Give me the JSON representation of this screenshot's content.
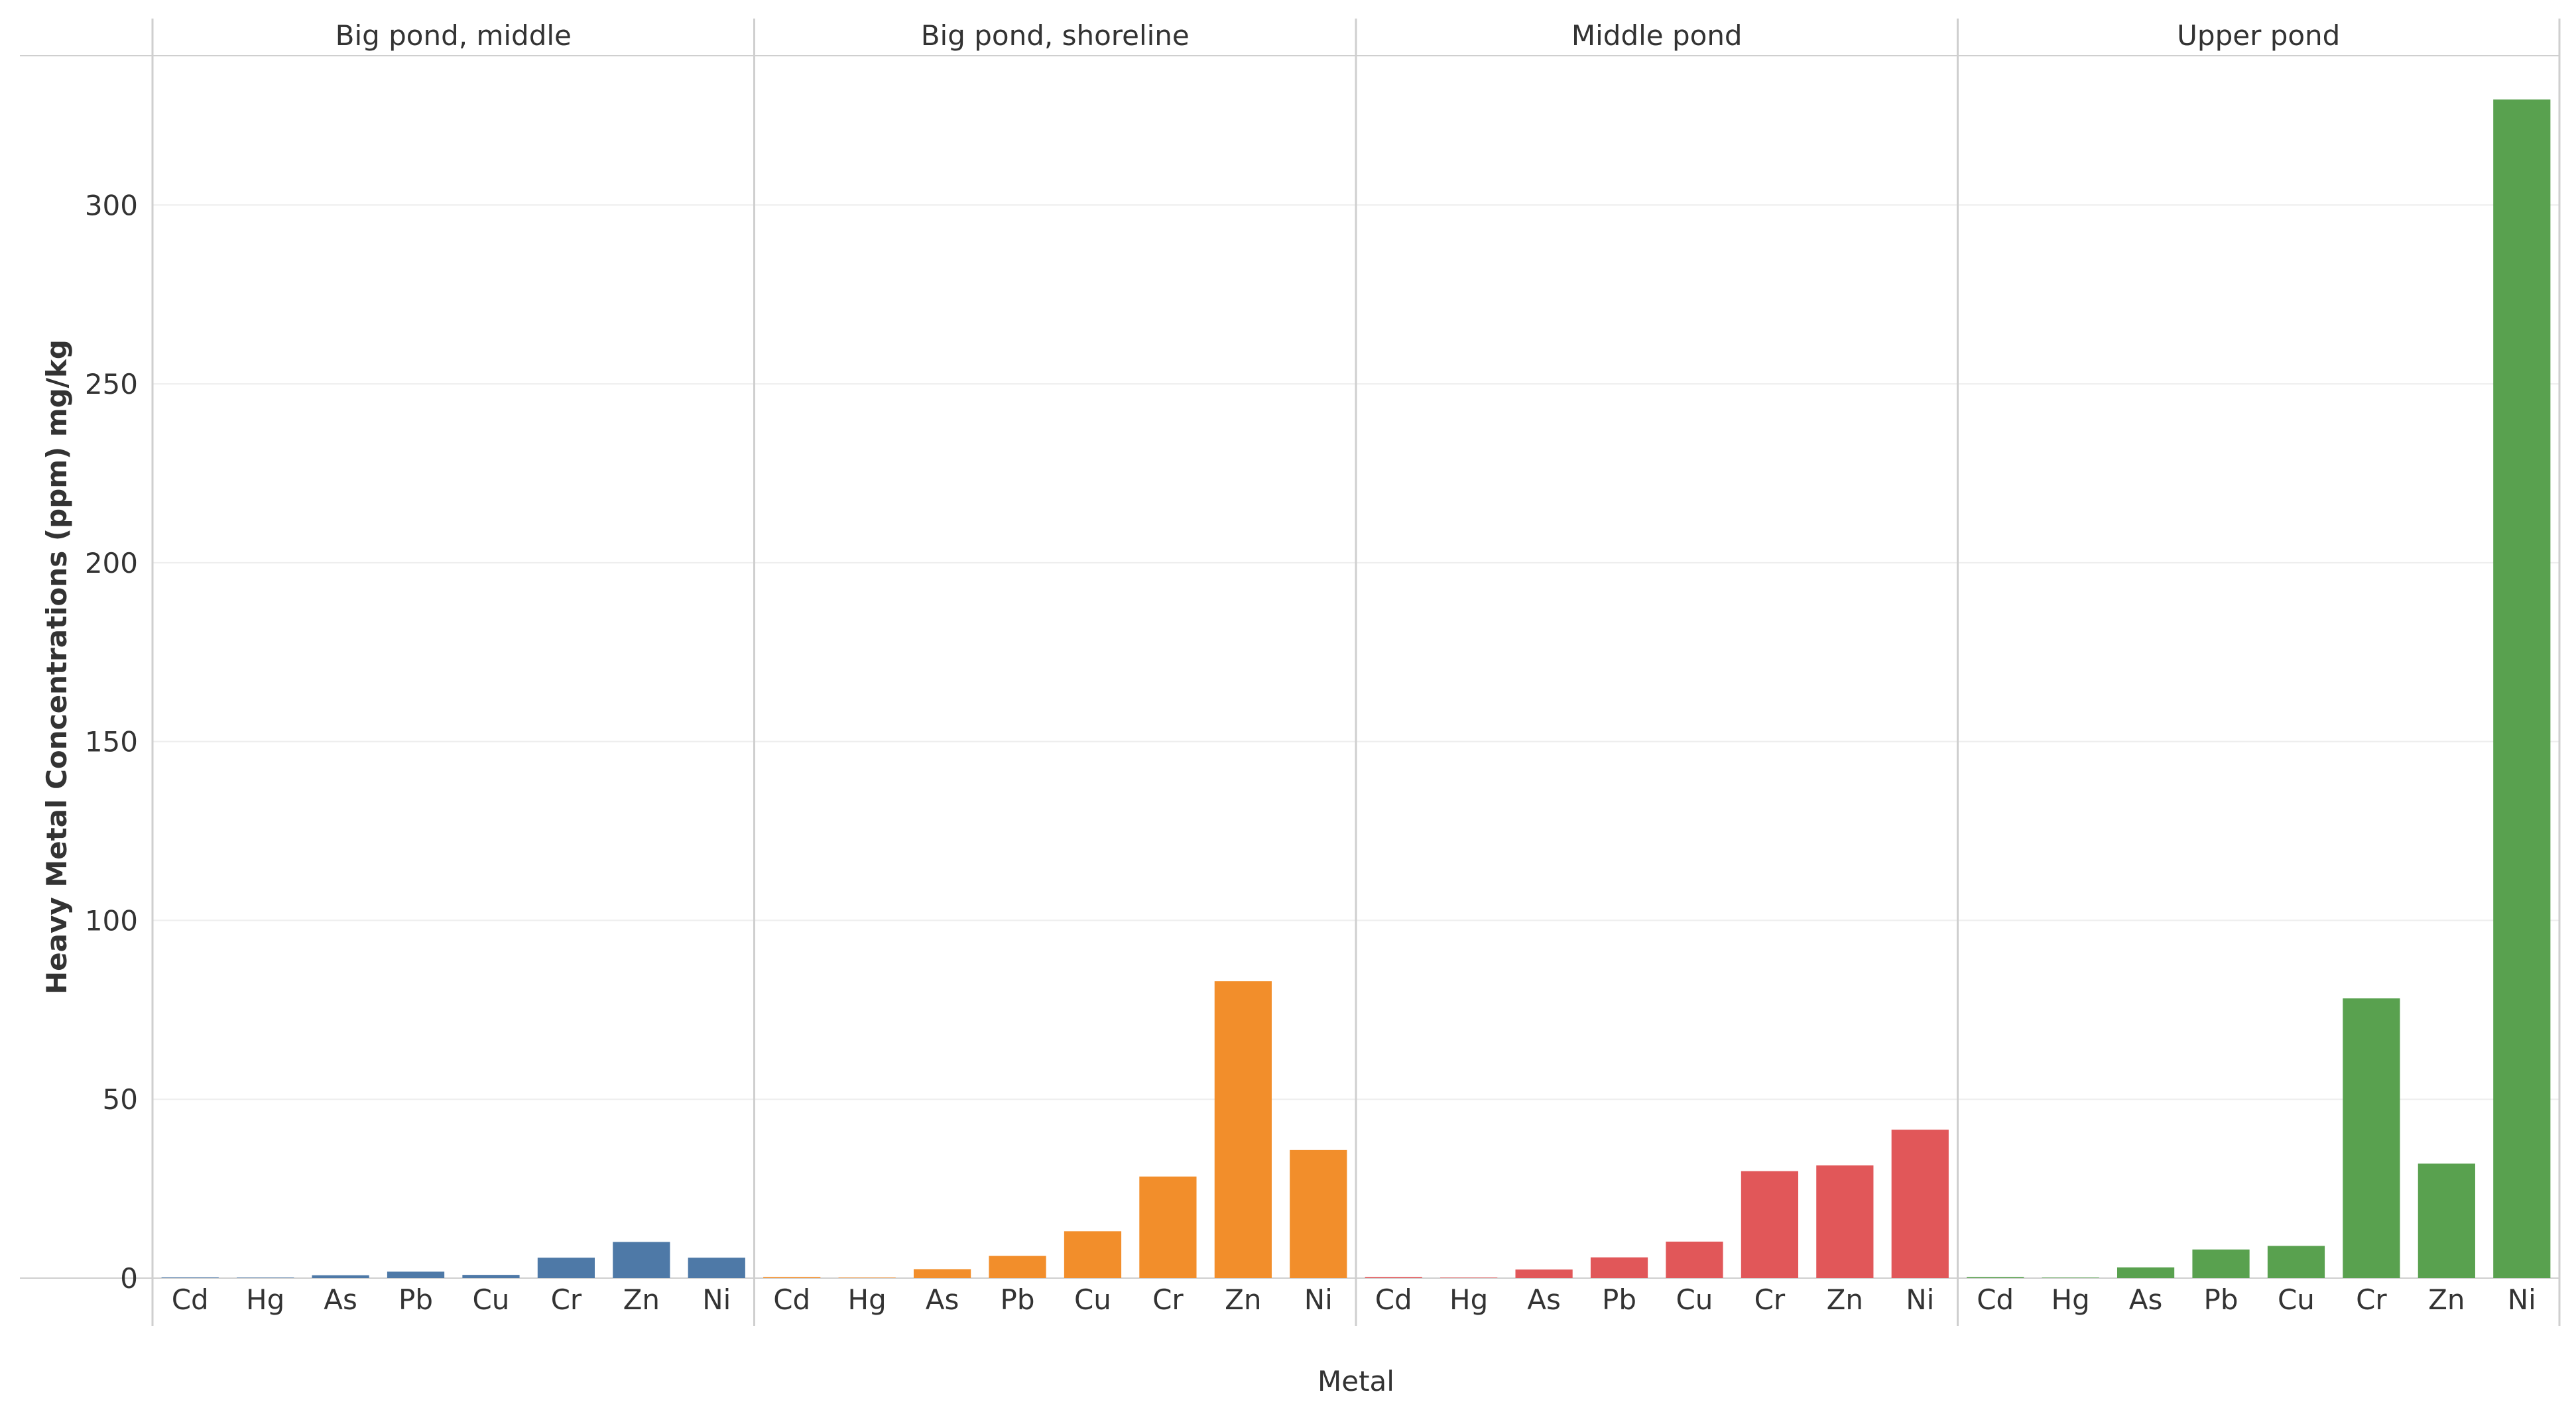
{
  "chart_data": {
    "type": "bar",
    "xlabel": "Metal",
    "ylabel": "Heavy Metal Concentrations (ppm) mg/kg",
    "ylim": [
      0,
      330
    ],
    "yticks": [
      0,
      50,
      100,
      150,
      200,
      250,
      300
    ],
    "grid": true,
    "categories": [
      "Cd",
      "Hg",
      "As",
      "Pb",
      "Cu",
      "Cr",
      "Zn",
      "Ni"
    ],
    "panels": [
      {
        "name": "Big pond, middle",
        "color": "#4e79a7",
        "values": [
          0.2,
          0.1,
          0.8,
          1.8,
          0.9,
          5.7,
          10.1,
          5.7
        ]
      },
      {
        "name": "Big pond, shoreline",
        "color": "#f28e2b",
        "values": [
          0.3,
          0.1,
          2.5,
          6.2,
          13.1,
          28.4,
          83.0,
          35.8
        ]
      },
      {
        "name": "Middle pond",
        "color": "#e15759",
        "values": [
          0.3,
          0.1,
          2.4,
          5.8,
          10.2,
          29.9,
          31.5,
          41.5
        ]
      },
      {
        "name": "Upper pond",
        "color": "#59a14f",
        "values": [
          0.3,
          0.1,
          3.0,
          8.0,
          9.0,
          78.2,
          32.0,
          329.5
        ]
      }
    ]
  }
}
